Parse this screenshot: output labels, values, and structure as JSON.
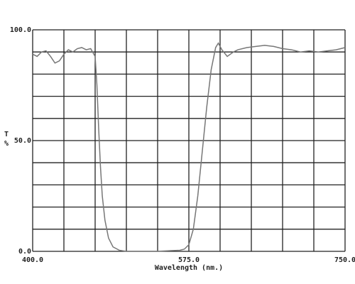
{
  "chart_data": {
    "type": "line",
    "x_label": "Wavelength (nm.)",
    "y_label_top": "T",
    "y_label_bottom": "%",
    "xlim": [
      400,
      750
    ],
    "ylim": [
      0,
      100
    ],
    "xticks": [
      {
        "value": 400,
        "label": "400.0"
      },
      {
        "value": 575,
        "label": "575.0"
      },
      {
        "value": 750,
        "label": "750.0"
      }
    ],
    "yticks": [
      {
        "value": 0,
        "label": "0.0"
      },
      {
        "value": 50,
        "label": "50.0"
      },
      {
        "value": 100,
        "label": "100.0"
      }
    ],
    "xgrid": [
      400,
      435,
      470,
      505,
      540,
      575,
      610,
      645,
      680,
      715,
      750
    ],
    "ygrid": [
      0,
      10,
      20,
      30,
      40,
      50,
      60,
      70,
      80,
      90,
      100
    ],
    "grid": true,
    "series": [
      {
        "color": "#777777",
        "x": [
          400,
          405,
          410,
          415,
          420,
          425,
          430,
          435,
          440,
          445,
          450,
          455,
          460,
          465,
          470,
          472,
          474,
          476,
          478,
          481,
          485,
          490,
          497,
          505,
          520,
          540,
          555,
          565,
          570,
          575,
          580,
          585,
          590,
          595,
          600,
          605,
          608,
          612,
          618,
          625,
          630,
          640,
          650,
          660,
          670,
          680,
          690,
          700,
          710,
          720,
          730,
          740,
          750
        ],
        "values": [
          89,
          88,
          90,
          90.5,
          88,
          85,
          86,
          89,
          91,
          90,
          91.5,
          92,
          91,
          91.5,
          88,
          75,
          55,
          38,
          25,
          14,
          6,
          2,
          0.5,
          0,
          0,
          0,
          0.3,
          0.5,
          1,
          3,
          10,
          25,
          45,
          65,
          82,
          92,
          94,
          91,
          88,
          90,
          91,
          92,
          92.5,
          93,
          92.5,
          91.5,
          91,
          90,
          90.5,
          90,
          90.5,
          91,
          92
        ]
      }
    ]
  }
}
